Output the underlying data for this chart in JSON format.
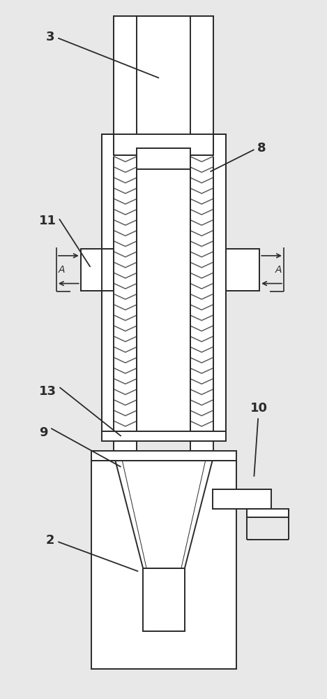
{
  "bg_color": "#e8e8e8",
  "line_color": "#2a2a2a",
  "lw": 1.4,
  "lw_thin": 0.7,
  "coil_rows": 26,
  "fig_w": 4.69,
  "fig_h": 10.0,
  "dpi": 100
}
